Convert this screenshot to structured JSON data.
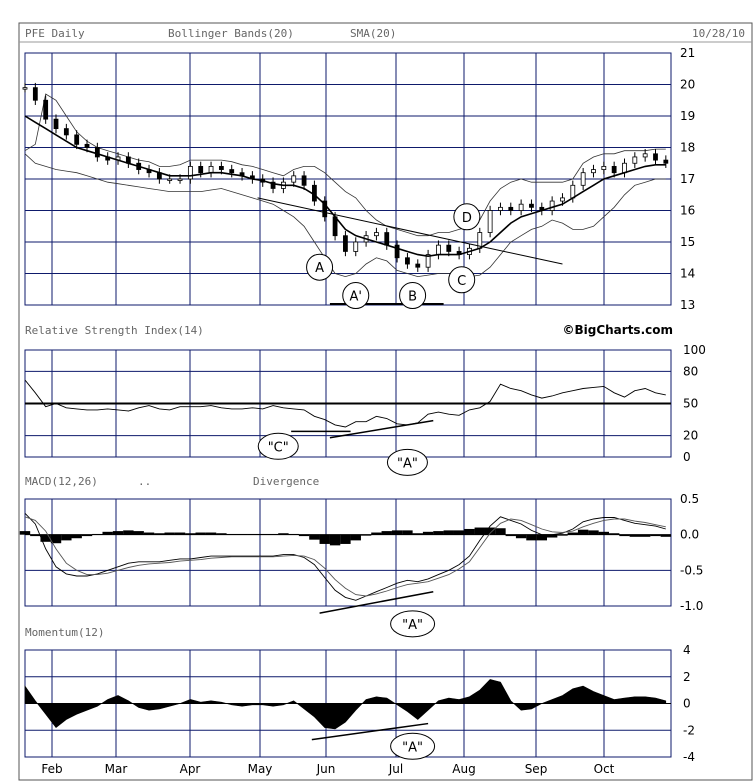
{
  "chart_data": [
    {
      "panel": "price",
      "type": "candlestick",
      "title": "PFE Daily",
      "indicators": [
        "Bollinger Bands(20)",
        "SMA(20)"
      ],
      "date": "10/28/10",
      "ylim": [
        13,
        21
      ],
      "yticks": [
        "21",
        "20",
        "19",
        "18",
        "17",
        "16",
        "15",
        "14",
        "13"
      ],
      "months": [
        "Feb",
        "Mar",
        "Apr",
        "May",
        "Jun",
        "Jul",
        "Aug",
        "Sep",
        "Oct"
      ],
      "x": [
        0,
        4,
        8,
        12,
        16,
        20,
        24,
        28,
        32,
        36,
        40,
        44,
        48,
        52,
        56,
        60,
        64,
        68,
        72,
        76,
        80,
        84,
        88,
        92,
        96,
        100,
        104,
        108,
        112,
        116,
        120,
        124,
        128,
        132,
        136,
        140,
        144,
        148,
        152,
        156,
        160,
        164,
        168,
        172,
        176,
        180,
        184,
        188,
        192,
        196,
        200,
        204,
        208,
        212,
        216,
        220,
        224,
        228,
        232,
        236,
        240,
        244,
        248
      ],
      "close": [
        19.9,
        19.5,
        18.9,
        18.6,
        18.4,
        18.1,
        18.0,
        17.7,
        17.6,
        17.7,
        17.5,
        17.3,
        17.2,
        17.0,
        17.0,
        17.0,
        17.4,
        17.2,
        17.4,
        17.3,
        17.2,
        17.1,
        17.0,
        16.9,
        16.7,
        16.9,
        17.1,
        16.8,
        16.3,
        15.8,
        15.2,
        14.7,
        15.0,
        15.2,
        15.3,
        14.9,
        14.5,
        14.3,
        14.2,
        14.6,
        14.9,
        14.7,
        14.6,
        14.8,
        15.3,
        16.0,
        16.1,
        16.0,
        16.2,
        16.1,
        16.0,
        16.3,
        16.4,
        16.8,
        17.2,
        17.3,
        17.4,
        17.2,
        17.5,
        17.7,
        17.8,
        17.6,
        17.5
      ],
      "sma": [
        19.0,
        18.8,
        18.6,
        18.4,
        18.2,
        18.0,
        17.9,
        17.8,
        17.7,
        17.6,
        17.5,
        17.4,
        17.3,
        17.2,
        17.1,
        17.1,
        17.1,
        17.15,
        17.2,
        17.2,
        17.15,
        17.1,
        17.0,
        16.95,
        16.85,
        16.8,
        16.8,
        16.7,
        16.5,
        16.2,
        15.8,
        15.4,
        15.2,
        15.1,
        15.0,
        14.9,
        14.8,
        14.7,
        14.6,
        14.55,
        14.6,
        14.6,
        14.6,
        14.7,
        14.8,
        15.0,
        15.3,
        15.6,
        15.8,
        15.9,
        16.0,
        16.1,
        16.2,
        16.4,
        16.6,
        16.8,
        17.0,
        17.1,
        17.2,
        17.3,
        17.4,
        17.45,
        17.45
      ],
      "upper_band": [
        17.9,
        18.1,
        19.7,
        19.5,
        19.0,
        18.5,
        18.2,
        18.0,
        17.9,
        17.8,
        17.7,
        17.6,
        17.55,
        17.4,
        17.4,
        17.45,
        17.6,
        17.6,
        17.6,
        17.6,
        17.55,
        17.45,
        17.4,
        17.3,
        17.2,
        17.1,
        17.3,
        17.4,
        17.4,
        17.2,
        16.9,
        16.6,
        16.4,
        16.0,
        15.7,
        15.5,
        15.4,
        15.3,
        15.2,
        15.2,
        15.3,
        15.3,
        15.4,
        15.5,
        15.7,
        16.3,
        16.7,
        16.9,
        17.0,
        16.9,
        16.9,
        16.9,
        16.9,
        17.0,
        17.5,
        17.7,
        17.8,
        17.8,
        17.9,
        17.9,
        17.9,
        17.95,
        17.95
      ],
      "lower_band": [
        17.8,
        17.5,
        17.4,
        17.3,
        17.25,
        17.2,
        17.1,
        17.0,
        16.9,
        16.85,
        16.8,
        16.75,
        16.7,
        16.65,
        16.6,
        16.6,
        16.6,
        16.6,
        16.65,
        16.7,
        16.6,
        16.5,
        16.4,
        16.3,
        16.2,
        16.0,
        15.8,
        15.5,
        15.0,
        14.5,
        14.0,
        13.9,
        14.0,
        14.3,
        14.5,
        14.4,
        14.1,
        14.0,
        13.9,
        13.95,
        14.0,
        14.0,
        13.9,
        13.9,
        13.95,
        14.2,
        14.6,
        15.0,
        15.2,
        15.4,
        15.5,
        15.7,
        15.6,
        15.4,
        15.4,
        15.5,
        15.8,
        16.1,
        16.5,
        16.8,
        16.9,
        17.0,
        17.0
      ],
      "annotations": [
        {
          "label": "A",
          "x": 114,
          "y": 14.2
        },
        {
          "label": "A'",
          "x": 128,
          "y": 13.3
        },
        {
          "label": "B",
          "x": 150,
          "y": 13.3
        },
        {
          "label": "C",
          "x": 169,
          "y": 13.8
        },
        {
          "label": "D",
          "x": 171,
          "y": 15.8
        }
      ],
      "trendline": {
        "x1": 90,
        "y1": 16.4,
        "x2": 208,
        "y2": 14.3
      }
    },
    {
      "panel": "rsi",
      "type": "line",
      "title": "Relative Strength Index(14)",
      "brand": "©BigCharts.com",
      "ylim": [
        0,
        100
      ],
      "yticks": [
        "100",
        "80",
        "50",
        "20",
        "0"
      ],
      "reference": 50,
      "values": [
        72,
        60,
        47,
        50,
        46,
        45,
        44,
        44,
        45,
        44,
        43,
        46,
        48,
        45,
        44,
        47,
        47,
        47,
        48,
        46,
        45,
        45,
        46,
        45,
        48,
        46,
        45,
        44,
        38,
        35,
        30,
        28,
        33,
        33,
        38,
        36,
        31,
        30,
        32,
        40,
        42,
        40,
        39,
        44,
        46,
        52,
        68,
        64,
        62,
        58,
        55,
        57,
        60,
        62,
        64,
        65,
        66,
        60,
        56,
        62,
        64,
        60,
        58
      ],
      "annotations": [
        {
          "label": "\"C\"",
          "x": 98,
          "y": 10
        },
        {
          "label": "\"A\"",
          "x": 148,
          "y": -5
        }
      ],
      "trendlines": [
        {
          "x1": 103,
          "y1": 24,
          "x2": 126,
          "y2": 24
        },
        {
          "x1": 118,
          "y1": 18,
          "x2": 158,
          "y2": 34
        }
      ]
    },
    {
      "panel": "macd",
      "type": "line",
      "title": "MACD(12,26)",
      "legend_dots": "..",
      "subtitle": "Divergence",
      "ylim": [
        -1.0,
        0.5
      ],
      "yticks": [
        "0.5",
        "0.0",
        "-0.5",
        "-1.0"
      ],
      "macd": [
        0.3,
        0.15,
        -0.2,
        -0.45,
        -0.55,
        -0.58,
        -0.58,
        -0.55,
        -0.5,
        -0.45,
        -0.4,
        -0.38,
        -0.38,
        -0.38,
        -0.36,
        -0.34,
        -0.34,
        -0.32,
        -0.3,
        -0.3,
        -0.3,
        -0.3,
        -0.3,
        -0.3,
        -0.3,
        -0.28,
        -0.28,
        -0.32,
        -0.42,
        -0.6,
        -0.78,
        -0.88,
        -0.92,
        -0.86,
        -0.8,
        -0.74,
        -0.68,
        -0.64,
        -0.66,
        -0.62,
        -0.56,
        -0.5,
        -0.42,
        -0.3,
        -0.08,
        0.12,
        0.25,
        0.2,
        0.15,
        0.06,
        0.0,
        0.0,
        0.02,
        0.08,
        0.18,
        0.22,
        0.24,
        0.24,
        0.2,
        0.16,
        0.14,
        0.12,
        0.08
      ],
      "signal": [
        0.25,
        0.2,
        0.05,
        -0.2,
        -0.4,
        -0.5,
        -0.56,
        -0.56,
        -0.54,
        -0.5,
        -0.46,
        -0.43,
        -0.41,
        -0.4,
        -0.39,
        -0.37,
        -0.36,
        -0.35,
        -0.33,
        -0.32,
        -0.31,
        -0.31,
        -0.31,
        -0.31,
        -0.31,
        -0.3,
        -0.29,
        -0.3,
        -0.35,
        -0.47,
        -0.63,
        -0.75,
        -0.84,
        -0.86,
        -0.83,
        -0.79,
        -0.74,
        -0.7,
        -0.68,
        -0.66,
        -0.61,
        -0.56,
        -0.48,
        -0.38,
        -0.18,
        0.02,
        0.16,
        0.22,
        0.2,
        0.14,
        0.08,
        0.04,
        0.03,
        0.05,
        0.11,
        0.16,
        0.2,
        0.22,
        0.22,
        0.19,
        0.17,
        0.14,
        0.11
      ],
      "histogram": [
        0.05,
        -0.02,
        -0.1,
        -0.12,
        -0.08,
        -0.05,
        -0.02,
        0.01,
        0.04,
        0.05,
        0.06,
        0.05,
        0.03,
        0.02,
        0.03,
        0.03,
        0.02,
        0.03,
        0.03,
        0.02,
        0.01,
        0.01,
        0.01,
        0.01,
        0.01,
        0.02,
        0.01,
        -0.02,
        -0.07,
        -0.13,
        -0.15,
        -0.13,
        -0.08,
        0.0,
        0.03,
        0.05,
        0.06,
        0.06,
        0.02,
        0.04,
        0.05,
        0.06,
        0.06,
        0.08,
        0.1,
        0.1,
        0.09,
        -0.02,
        -0.05,
        -0.08,
        -0.08,
        -0.04,
        -0.01,
        0.03,
        0.07,
        0.06,
        0.04,
        0.02,
        -0.02,
        -0.03,
        -0.03,
        -0.02,
        -0.03
      ],
      "annotations": [
        {
          "label": "\"A\"",
          "x": 150,
          "y": -1.25
        }
      ],
      "trendline": {
        "x1": 114,
        "y1": -1.1,
        "x2": 158,
        "y2": -0.8
      }
    },
    {
      "panel": "momentum",
      "type": "area",
      "title": "Momentum(12)",
      "ylim": [
        -4,
        4
      ],
      "yticks": [
        "4",
        "2",
        "0",
        "-2",
        "-4"
      ],
      "values": [
        1.3,
        0.2,
        -0.8,
        -1.8,
        -1.2,
        -0.8,
        -0.5,
        -0.2,
        0.3,
        0.6,
        0.2,
        -0.3,
        -0.5,
        -0.4,
        -0.2,
        0.0,
        0.3,
        0.1,
        0.2,
        0.1,
        -0.1,
        -0.2,
        -0.1,
        -0.1,
        -0.2,
        -0.1,
        0.2,
        -0.4,
        -1.0,
        -1.8,
        -1.9,
        -1.4,
        -0.5,
        0.3,
        0.5,
        0.4,
        -0.1,
        -0.6,
        -1.2,
        -0.5,
        0.2,
        0.4,
        0.3,
        0.5,
        1.0,
        1.8,
        1.6,
        0.2,
        -0.5,
        -0.4,
        0.0,
        0.3,
        0.6,
        1.1,
        1.3,
        0.9,
        0.6,
        0.3,
        0.4,
        0.5,
        0.5,
        0.4,
        0.2
      ],
      "annotations": [
        {
          "label": "\"A\"",
          "x": 150,
          "y": -3.2
        }
      ],
      "trendline": {
        "x1": 111,
        "y1": -2.7,
        "x2": 156,
        "y2": -1.5
      }
    }
  ]
}
